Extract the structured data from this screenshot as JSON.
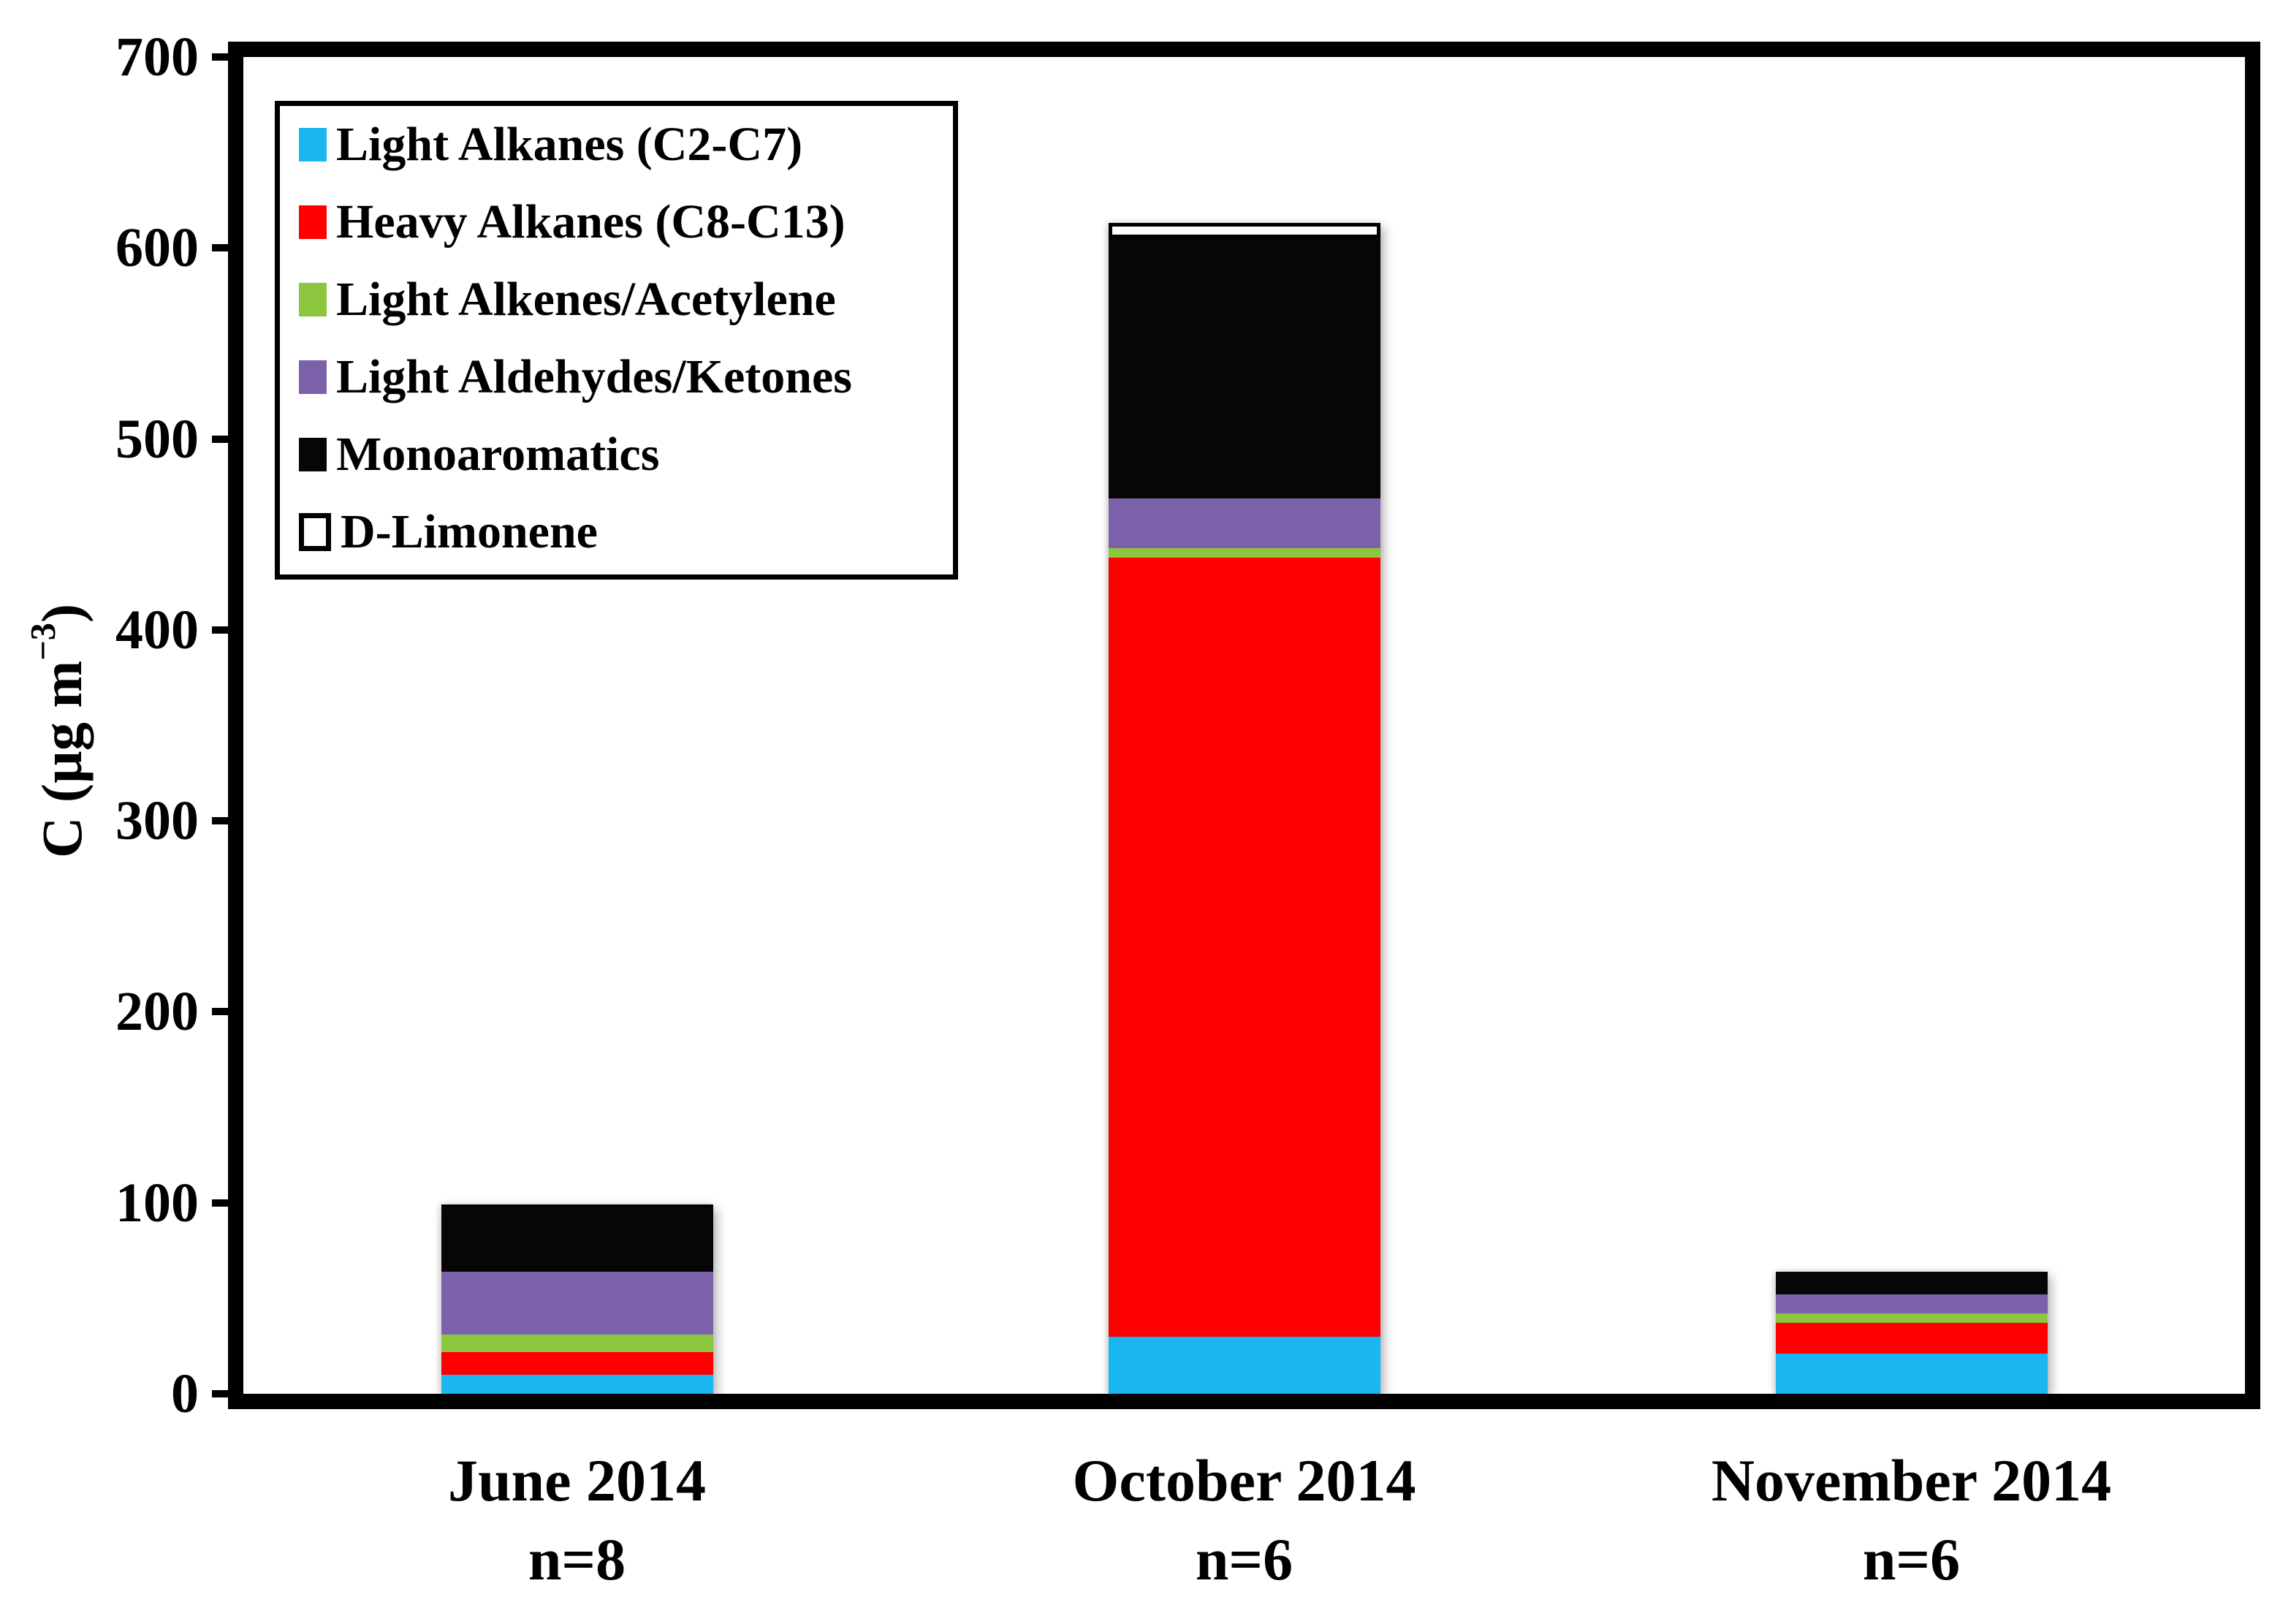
{
  "page": {
    "background": "#ffffff"
  },
  "y_axis": {
    "title_main": "C (µg m",
    "title_sup": "−3",
    "title_close": ")",
    "tick_values": [
      700,
      600,
      500,
      400,
      300,
      200,
      100,
      0
    ],
    "min": 0,
    "max": 700,
    "tick_step": 100
  },
  "x_axis": {
    "categories": [
      {
        "label": "June 2014",
        "sub_label": "n=8"
      },
      {
        "label": "October 2014",
        "sub_label": "n=6"
      },
      {
        "label": "November 2014",
        "sub_label": "n=6"
      }
    ]
  },
  "legend": {
    "items": [
      {
        "label": "Light Alkanes (C2-C7)",
        "color": "#1AB6F2",
        "outlined": false
      },
      {
        "label": "Heavy Alkanes (C8-C13)",
        "color": "#FE0000",
        "outlined": false
      },
      {
        "label": "Light Alkenes/Acetylene",
        "color": "#8CC63F",
        "outlined": false
      },
      {
        "label": "Light Aldehydes/Ketones",
        "color": "#7B60AA",
        "outlined": false
      },
      {
        "label": "Monoaromatics",
        "color": "#060606",
        "outlined": false
      },
      {
        "label": "D-Limonene",
        "color": "#FFFFFF",
        "outlined": true
      }
    ]
  },
  "chart_data": {
    "type": "bar",
    "stacked": true,
    "title": "",
    "xlabel": "",
    "ylabel": "C (µg m−3)",
    "ylim": [
      0,
      700
    ],
    "grid": false,
    "legend_position": "upper-left-inside",
    "categories": [
      "June 2014 n=8",
      "October 2014 n=6",
      "November 2014 n=6"
    ],
    "series": [
      {
        "name": "Light Alkanes (C2-C7)",
        "color": "#1AB6F2",
        "gradient": false,
        "outlined": false,
        "values": [
          10,
          30,
          21
        ]
      },
      {
        "name": "Heavy Alkanes (C8-C13)",
        "color": "#FE0000",
        "gradient": false,
        "outlined": false,
        "values": [
          12,
          408,
          16
        ]
      },
      {
        "name": "Light Alkenes/Acetylene",
        "color": "#8CC63F",
        "gradient": false,
        "outlined": false,
        "values": [
          9,
          5,
          5
        ]
      },
      {
        "name": "Light Aldehydes/Ketones",
        "color": "#7B60AA",
        "gradient": true,
        "outlined": false,
        "values": [
          33,
          26,
          10
        ]
      },
      {
        "name": "Monoaromatics",
        "color": "#060606",
        "gradient": false,
        "outlined": false,
        "values": [
          34,
          136,
          12
        ]
      },
      {
        "name": "D-Limonene",
        "color": "#FFFFFF",
        "gradient": false,
        "outlined": true,
        "values": [
          1,
          8,
          0
        ]
      }
    ]
  }
}
